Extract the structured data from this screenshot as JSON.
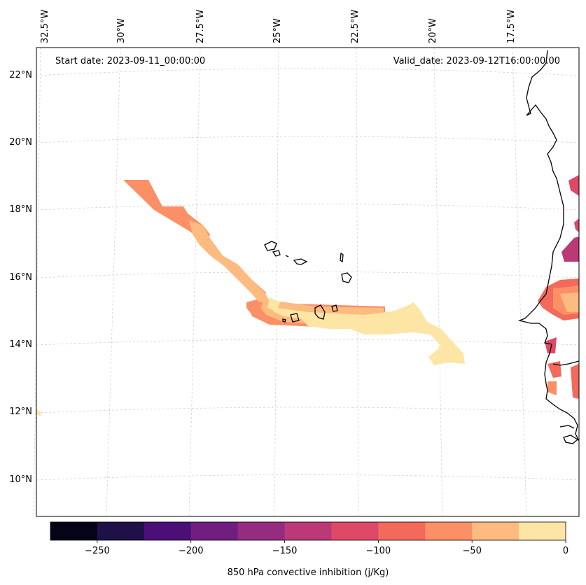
{
  "map": {
    "start_date": "Start date: 2023-09-11_00:00:00",
    "valid_date": "Valid_date: 2023-09-12T16:00:00.00",
    "lon_labels": [
      "32.5°W",
      "30°W",
      "27.5°W",
      "25°W",
      "22.5°W",
      "20°W",
      "17.5°W"
    ],
    "lat_labels": [
      "22°N",
      "20°N",
      "18°N",
      "16°N",
      "14°N",
      "12°N",
      "10°N"
    ],
    "gridlines": true
  },
  "colorbar": {
    "label": "850 hPa convective inhibition (j/Kg)",
    "min": -275,
    "max": 0,
    "step": 25,
    "tick_labels": [
      "−250",
      "−200",
      "−150",
      "−100",
      "−50",
      "0"
    ],
    "tick_values": [
      -250,
      -200,
      -150,
      -100,
      -50,
      0
    ],
    "colors": [
      "#050417",
      "#1f1147",
      "#4b0f77",
      "#701f81",
      "#952c80",
      "#bc3978",
      "#de4968",
      "#f3695c",
      "#fb9066",
      "#febb80",
      "#fde5a5"
    ],
    "colormap": "magma"
  }
}
